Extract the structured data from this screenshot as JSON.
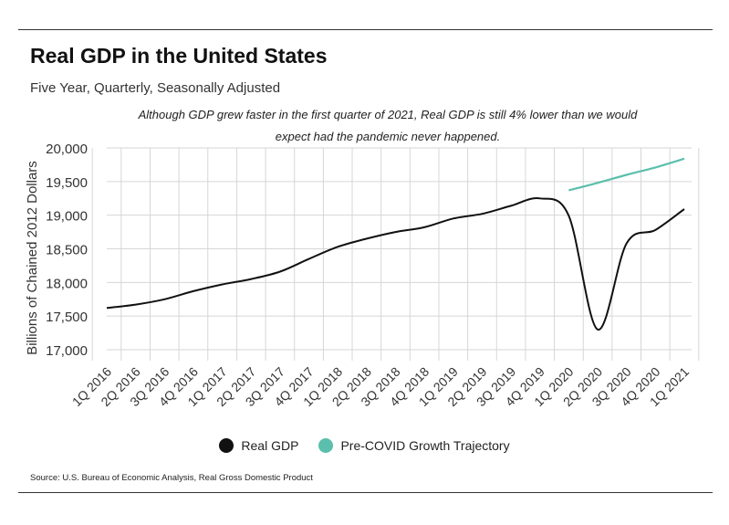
{
  "title": "Real GDP in the United States",
  "subtitle": "Five Year, Quarterly, Seasonally Adjusted",
  "annotation": "Although GDP grew faster in the first quarter of 2021, Real GDP is still 4% lower than we would expect had the pandemic never happened.",
  "source": "Source:  U.S. Bureau of Economic Analysis, Real Gross Domestic Product",
  "colors": {
    "real_gdp": "#111111",
    "trajectory": "#5bbfad",
    "grid": "#d6d6d6"
  },
  "chart_data": {
    "type": "line",
    "ylabel": "Billions of Chained 2012 Dollars",
    "ylim": [
      17000,
      20000
    ],
    "yticks": [
      17000,
      17500,
      18000,
      18500,
      19000,
      19500,
      20000
    ],
    "ytick_labels": [
      "17,000",
      "17,500",
      "18,000",
      "18,500",
      "19,000",
      "19,500",
      "20,000"
    ],
    "grid": true,
    "legend_position": "bottom",
    "categories": [
      "1Q 2016",
      "2Q 2016",
      "3Q 2016",
      "4Q 2016",
      "1Q 2017",
      "2Q 2017",
      "3Q 2017",
      "4Q 2017",
      "1Q 2018",
      "2Q 2018",
      "3Q 2018",
      "4Q 2018",
      "1Q 2019",
      "2Q 2019",
      "3Q 2019",
      "4Q 2019",
      "1Q 2020",
      "2Q 2020",
      "3Q 2020",
      "4Q 2020",
      "1Q 2021"
    ],
    "series": [
      {
        "name": "Real GDP",
        "values": [
          17620,
          17670,
          17750,
          17870,
          17970,
          18050,
          18160,
          18350,
          18530,
          18650,
          18750,
          18820,
          18950,
          19020,
          19140,
          19250,
          18990,
          17300,
          18580,
          18780,
          19090
        ]
      },
      {
        "name": "Pre-COVID Growth Trajectory",
        "values": [
          null,
          null,
          null,
          null,
          null,
          null,
          null,
          null,
          null,
          null,
          null,
          null,
          null,
          null,
          null,
          null,
          19370,
          19480,
          19600,
          19710,
          19840
        ]
      }
    ]
  }
}
